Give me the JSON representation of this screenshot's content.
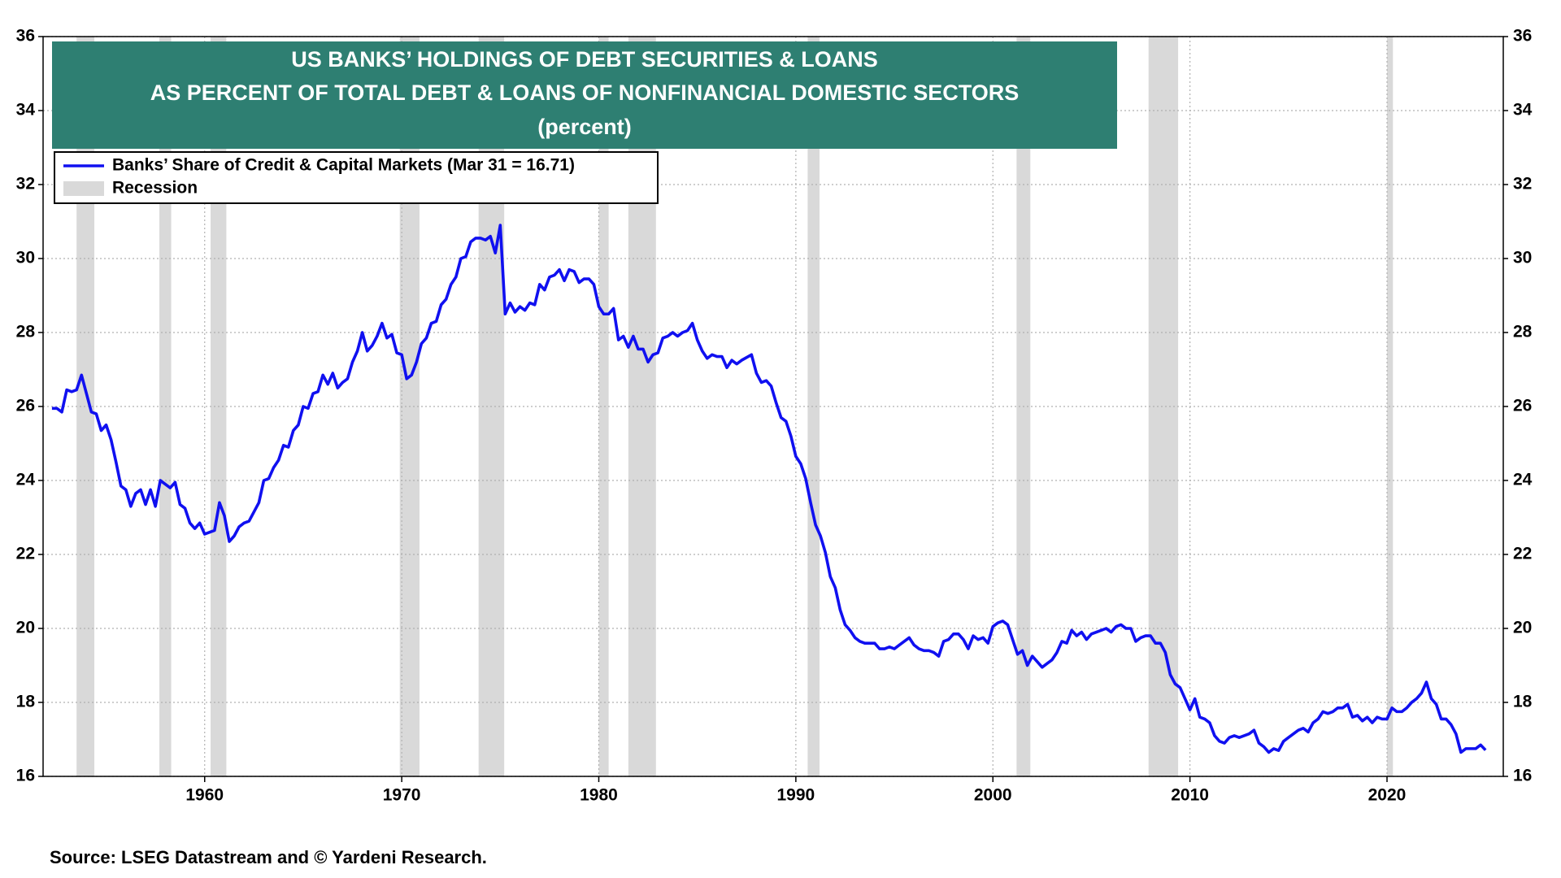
{
  "chart_data": {
    "type": "line",
    "title": [
      "US BANKS’ HOLDINGS OF DEBT SECURITIES & LOANS",
      "AS PERCENT OF TOTAL DEBT & LOANS OF NONFINANCIAL DOMESTIC SECTORS"
    ],
    "subtitle": "(percent)",
    "source": "Source: LSEG Datastream and © Yardeni Research.",
    "legend": "upper left",
    "grid": true,
    "xlim": [
      1951.8,
      2025.9
    ],
    "xticks": [
      1960,
      1970,
      1980,
      1990,
      2000,
      2010,
      2020
    ],
    "ylim": [
      16,
      36
    ],
    "yticks": [
      16,
      18,
      20,
      22,
      24,
      26,
      28,
      30,
      32,
      34,
      36
    ],
    "y2lim": [
      16,
      36
    ],
    "y2ticks": [
      16,
      18,
      20,
      22,
      24,
      26,
      28,
      30,
      32,
      34,
      36
    ],
    "recessions": {
      "name": "Recession",
      "color": "#d9d9d9",
      "spans": [
        [
          1953.5,
          1954.4
        ],
        [
          1957.7,
          1958.3
        ],
        [
          1960.3,
          1961.1
        ],
        [
          1969.9,
          1970.9
        ],
        [
          1973.9,
          1975.2
        ],
        [
          1980.0,
          1980.5
        ],
        [
          1981.5,
          1982.9
        ],
        [
          1990.6,
          1991.2
        ],
        [
          2001.2,
          2001.9
        ],
        [
          2007.9,
          2009.4
        ],
        [
          2020.0,
          2020.3
        ]
      ]
    },
    "x": [
      1952.25,
      1952.5,
      1952.75,
      1953,
      1953.25,
      1953.5,
      1953.75,
      1954,
      1954.25,
      1954.5,
      1954.75,
      1955,
      1955.25,
      1955.5,
      1955.75,
      1956,
      1956.25,
      1956.5,
      1956.75,
      1957,
      1957.25,
      1957.5,
      1957.75,
      1958,
      1958.25,
      1958.5,
      1958.75,
      1959,
      1959.25,
      1959.5,
      1959.75,
      1960,
      1960.25,
      1960.5,
      1960.75,
      1961,
      1961.25,
      1961.5,
      1961.75,
      1962,
      1962.25,
      1962.5,
      1962.75,
      1963,
      1963.25,
      1963.5,
      1963.75,
      1964,
      1964.25,
      1964.5,
      1964.75,
      1965,
      1965.25,
      1965.5,
      1965.75,
      1966,
      1966.25,
      1966.5,
      1966.75,
      1967,
      1967.25,
      1967.5,
      1967.75,
      1968,
      1968.25,
      1968.5,
      1968.75,
      1969,
      1969.25,
      1969.5,
      1969.75,
      1970,
      1970.25,
      1970.5,
      1970.75,
      1971,
      1971.25,
      1971.5,
      1971.75,
      1972,
      1972.25,
      1972.5,
      1972.75,
      1973,
      1973.25,
      1973.5,
      1973.75,
      1974,
      1974.25,
      1974.5,
      1974.75,
      1975,
      1975.25,
      1975.5,
      1975.75,
      1976,
      1976.25,
      1976.5,
      1976.75,
      1977,
      1977.25,
      1977.5,
      1977.75,
      1978,
      1978.25,
      1978.5,
      1978.75,
      1979,
      1979.25,
      1979.5,
      1979.75,
      1980,
      1980.25,
      1980.5,
      1980.75,
      1981,
      1981.25,
      1981.5,
      1981.75,
      1982,
      1982.25,
      1982.5,
      1982.75,
      1983,
      1983.25,
      1983.5,
      1983.75,
      1984,
      1984.25,
      1984.5,
      1984.75,
      1985,
      1985.25,
      1985.5,
      1985.75,
      1986,
      1986.25,
      1986.5,
      1986.75,
      1987,
      1987.25,
      1987.75,
      1988,
      1988.25,
      1988.5,
      1988.75,
      1989,
      1989.25,
      1989.5,
      1989.75,
      1990,
      1990.25,
      1990.5,
      1990.75,
      1991,
      1991.25,
      1991.5,
      1991.75,
      1992,
      1992.25,
      1992.5,
      1992.75,
      1993,
      1993.25,
      1993.5,
      1993.75,
      1994,
      1994.25,
      1994.5,
      1994.75,
      1995,
      1995.25,
      1995.5,
      1995.75,
      1996,
      1996.25,
      1996.5,
      1996.75,
      1997,
      1997.25,
      1997.5,
      1997.75,
      1998,
      1998.25,
      1998.5,
      1998.75,
      1999,
      1999.25,
      1999.5,
      1999.75,
      2000,
      2000.25,
      2000.5,
      2000.75,
      2001,
      2001.25,
      2001.5,
      2001.75,
      2002,
      2002.25,
      2002.5,
      2002.75,
      2003,
      2003.25,
      2003.5,
      2003.75,
      2004,
      2004.25,
      2004.5,
      2004.75,
      2005,
      2005.25,
      2005.5,
      2005.75,
      2006,
      2006.25,
      2006.5,
      2006.75,
      2007,
      2007.25,
      2007.5,
      2007.75,
      2008,
      2008.25,
      2008.5,
      2008.75,
      2009,
      2009.25,
      2009.5,
      2009.75,
      2010,
      2010.25,
      2010.5,
      2010.75,
      2011,
      2011.25,
      2011.5,
      2011.75,
      2012,
      2012.25,
      2012.5,
      2013,
      2013.25,
      2013.5,
      2013.75,
      2014,
      2014.25,
      2014.5,
      2014.75,
      2015,
      2015.25,
      2015.5,
      2015.75,
      2016,
      2016.25,
      2016.5,
      2016.75,
      2017,
      2017.25,
      2017.5,
      2017.75,
      2018,
      2018.25,
      2018.5,
      2018.75,
      2019,
      2019.25,
      2019.5,
      2019.75,
      2020,
      2020.25,
      2020.5,
      2020.75,
      2021,
      2021.25,
      2021.5,
      2021.75,
      2022,
      2022.25,
      2022.5,
      2022.75,
      2023,
      2023.25,
      2023.5,
      2023.75,
      2024,
      2024.25,
      2024.5,
      2024.75,
      2025
    ],
    "series": [
      {
        "name": "Banks’ Share of Credit & Capital Markets (Mar 31 = 16.71)",
        "color": "#1010f0",
        "values": [
          25.95,
          25.95,
          25.85,
          26.45,
          26.4,
          26.45,
          26.85,
          26.35,
          25.85,
          25.8,
          25.35,
          25.5,
          25.1,
          24.5,
          23.85,
          23.75,
          23.3,
          23.65,
          23.75,
          23.35,
          23.75,
          23.3,
          24.0,
          23.9,
          23.8,
          23.95,
          23.35,
          23.25,
          22.85,
          22.7,
          22.85,
          22.55,
          22.6,
          22.65,
          23.4,
          23.05,
          22.35,
          22.5,
          22.75,
          22.85,
          22.9,
          23.15,
          23.4,
          24.0,
          24.05,
          24.35,
          24.55,
          24.95,
          24.9,
          25.35,
          25.5,
          26.0,
          25.95,
          26.35,
          26.4,
          26.85,
          26.6,
          26.9,
          26.5,
          26.65,
          26.75,
          27.2,
          27.5,
          28.0,
          27.5,
          27.65,
          27.9,
          28.25,
          27.85,
          27.95,
          27.45,
          27.4,
          26.75,
          26.85,
          27.2,
          27.7,
          27.85,
          28.25,
          28.3,
          28.75,
          28.9,
          29.3,
          29.5,
          30.0,
          30.05,
          30.45,
          30.55,
          30.55,
          30.5,
          30.6,
          30.15,
          30.9,
          28.5,
          28.8,
          28.55,
          28.7,
          28.6,
          28.8,
          28.75,
          29.3,
          29.15,
          29.5,
          29.55,
          29.7,
          29.4,
          29.7,
          29.65,
          29.35,
          29.45,
          29.45,
          29.3,
          28.7,
          28.5,
          28.5,
          28.65,
          27.8,
          27.9,
          27.6,
          27.9,
          27.55,
          27.55,
          27.2,
          27.4,
          27.45,
          27.85,
          27.9,
          28.0,
          27.9,
          28.0,
          28.05,
          28.25,
          27.8,
          27.5,
          27.3,
          27.4,
          27.35,
          27.35,
          27.05,
          27.25,
          27.15,
          27.25,
          27.4,
          26.9,
          26.65,
          26.7,
          26.55,
          26.1,
          25.7,
          25.6,
          25.2,
          24.65,
          24.45,
          24.05,
          23.4,
          22.8,
          22.5,
          22.05,
          21.4,
          21.1,
          20.5,
          20.1,
          19.95,
          19.75,
          19.65,
          19.6,
          19.6,
          19.6,
          19.45,
          19.45,
          19.5,
          19.45,
          19.55,
          19.65,
          19.75,
          19.55,
          19.45,
          19.4,
          19.4,
          19.35,
          19.25,
          19.65,
          19.7,
          19.85,
          19.85,
          19.7,
          19.45,
          19.8,
          19.7,
          19.75,
          19.6,
          20.05,
          20.15,
          20.2,
          20.1,
          19.7,
          19.3,
          19.4,
          19.0,
          19.25,
          19.1,
          18.95,
          19.05,
          19.15,
          19.35,
          19.65,
          19.6,
          19.95,
          19.8,
          19.9,
          19.7,
          19.85,
          19.9,
          19.95,
          20.0,
          19.9,
          20.05,
          20.1,
          20.0,
          20.0,
          19.65,
          19.75,
          19.8,
          19.8,
          19.6,
          19.6,
          19.35,
          18.75,
          18.5,
          18.4,
          18.1,
          17.8,
          18.1,
          17.6,
          17.55,
          17.45,
          17.1,
          16.95,
          16.9,
          17.05,
          17.1,
          17.05,
          17.15,
          17.25,
          16.9,
          16.8,
          16.65,
          16.75,
          16.7,
          16.95,
          17.05,
          17.15,
          17.25,
          17.3,
          17.2,
          17.45,
          17.55,
          17.75,
          17.7,
          17.75,
          17.85,
          17.85,
          17.95,
          17.6,
          17.65,
          17.5,
          17.6,
          17.45,
          17.6,
          17.55,
          17.55,
          17.85,
          17.75,
          17.75,
          17.85,
          18.0,
          18.1,
          18.25,
          18.55,
          18.1,
          17.95,
          17.55,
          17.55,
          17.4,
          17.15,
          16.65,
          16.75,
          16.75,
          16.75,
          16.85,
          16.71
        ]
      }
    ]
  }
}
